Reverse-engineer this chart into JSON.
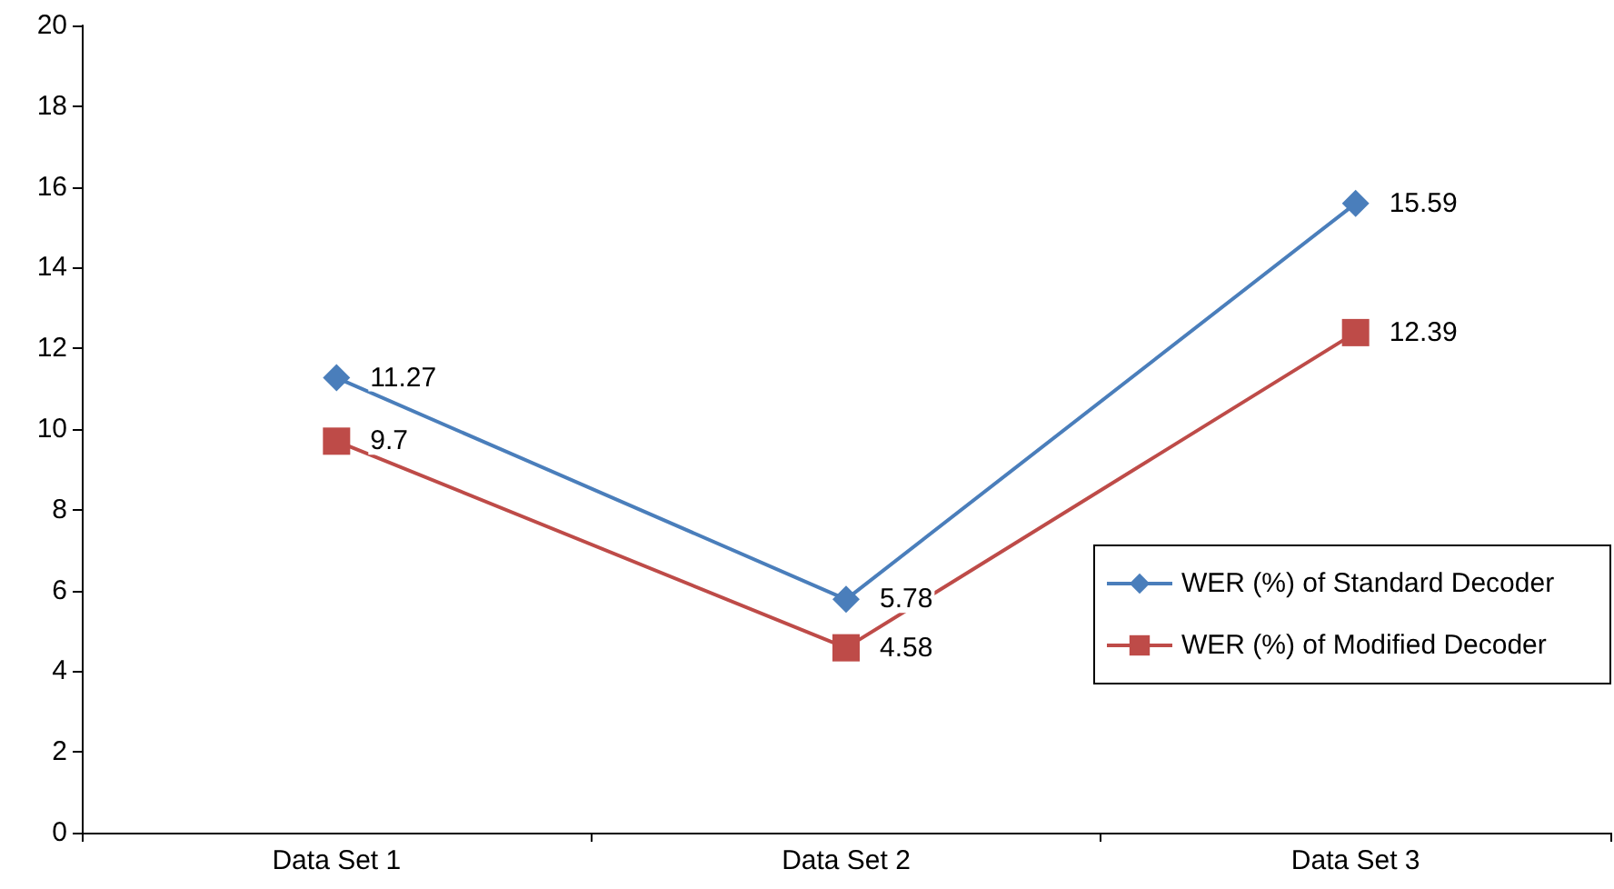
{
  "chart_data": {
    "type": "line",
    "categories": [
      "Data Set 1",
      "Data Set 2",
      "Data Set 3"
    ],
    "series": [
      {
        "name": "WER (%) of Standard Decoder",
        "color": "#4a7ebb",
        "marker": "diamond",
        "values": [
          11.27,
          5.78,
          15.59
        ]
      },
      {
        "name": "WER (%) of Modified Decoder",
        "color": "#be4b48",
        "marker": "square",
        "values": [
          9.7,
          4.58,
          12.39
        ]
      }
    ],
    "ylim": [
      0,
      20
    ],
    "yticks": [
      0,
      2,
      4,
      6,
      8,
      10,
      12,
      14,
      16,
      18,
      20
    ],
    "grid": false,
    "legend": "bottom right",
    "data_labels": true
  }
}
